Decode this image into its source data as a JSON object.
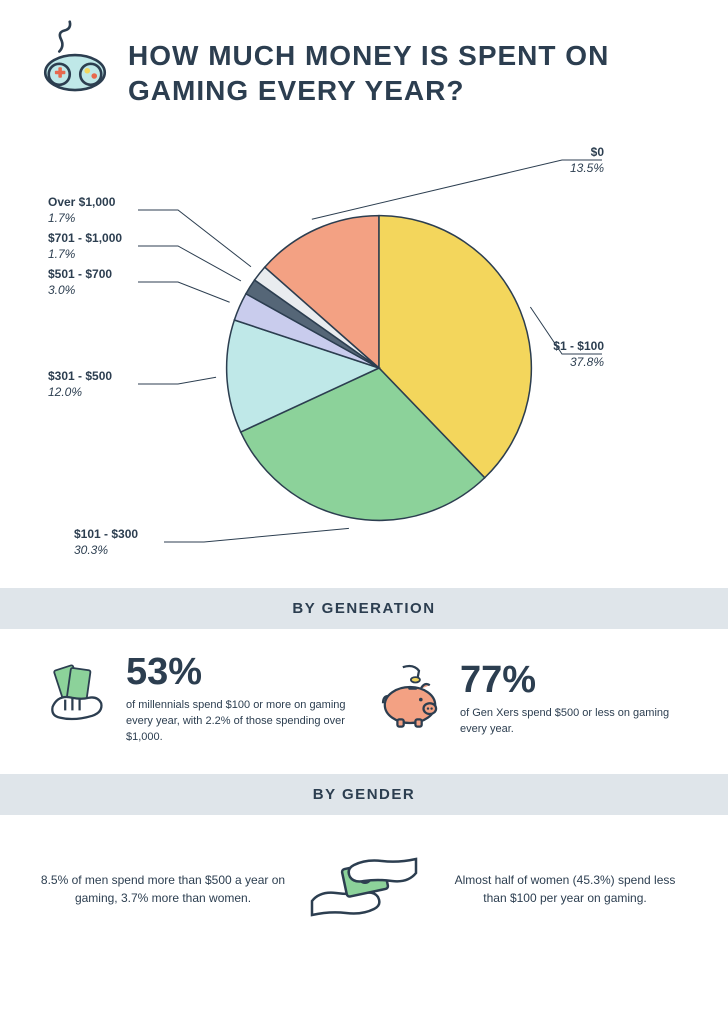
{
  "title": "HOW MUCH MONEY IS SPENT ON GAMING EVERY YEAR?",
  "pie": {
    "type": "pie",
    "background_color": "#ffffff",
    "stroke_color": "#2c3e50",
    "stroke_width": 1,
    "label_fontsize": 12,
    "slices": [
      {
        "label": "$0",
        "pct_label": "13.5%",
        "value": 13.5,
        "color": "#f3a183"
      },
      {
        "label": "$1 - $100",
        "pct_label": "37.8%",
        "value": 37.8,
        "color": "#f3d65c"
      },
      {
        "label": "$101 - $300",
        "pct_label": "30.3%",
        "value": 30.3,
        "color": "#8cd29a"
      },
      {
        "label": "$301 - $500",
        "pct_label": "12.0%",
        "value": 12.0,
        "color": "#bfe8e8"
      },
      {
        "label": "$501 - $700",
        "pct_label": "3.0%",
        "value": 3.0,
        "color": "#c9cced"
      },
      {
        "label": "$701 - $1,000",
        "pct_label": "1.7%",
        "value": 1.7,
        "color": "#556677"
      },
      {
        "label": "Over $1,000",
        "pct_label": "1.7%",
        "value": 1.7,
        "color": "#e9ecef"
      }
    ]
  },
  "section_generation": "BY GENERATION",
  "gen_left_big": "53%",
  "gen_left_desc": "of millennials spend $100 or more on gaming every year, with 2.2% of those spending over $1,000.",
  "gen_right_big": "77%",
  "gen_right_desc": "of Gen Xers spend $500 or less on gaming every year.",
  "section_gender": "BY GENDER",
  "gender_left": "8.5% of men spend more than $500 a year on gaming, 3.7% more than women.",
  "gender_right": "Almost half of women (45.3%) spend less than $100 per year on gaming.",
  "icon_colors": {
    "controller_body": "#bfe8e8",
    "controller_stroke": "#2c3e50",
    "controller_btn_red": "#e7694e",
    "controller_btn_yellow": "#f3d65c",
    "cash_fill": "#8cd29a",
    "cash_stroke": "#2c3e50",
    "hand_stroke": "#2c3e50",
    "piggy_fill": "#f3a183",
    "piggy_stroke": "#2c3e50",
    "coin_fill": "#f3d65c"
  }
}
